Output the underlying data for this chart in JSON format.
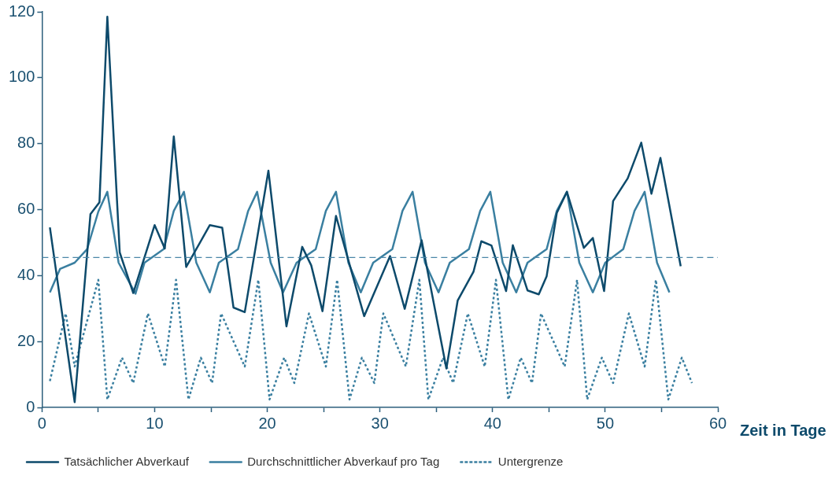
{
  "chart_data": {
    "type": "line",
    "xlabel": "Zeit in Tage",
    "xlim": [
      0,
      60
    ],
    "xticks": [
      0,
      {
        "value": 5,
        "label": null
      },
      10,
      {
        "value": 15,
        "label": null
      },
      20,
      {
        "value": 25,
        "label": null
      },
      30,
      {
        "value": 35,
        "label": null
      },
      40,
      {
        "value": 45,
        "label": null
      },
      50,
      {
        "value": 55,
        "label": null
      },
      60
    ],
    "ylim": [
      0,
      120
    ],
    "yticks": [
      0,
      20,
      40,
      60,
      80,
      100,
      120
    ],
    "grid": false,
    "legend": "bottom",
    "marker": "none",
    "ref_lines": [
      {
        "axis": "y",
        "value": 45.5,
        "color": "#4a86a8",
        "line_style": "dashed"
      }
    ],
    "series": [
      {
        "name": "Tatsächlicher Abverkauf",
        "color": "#0d4a6b",
        "line_style": "solid",
        "x": [
          0.7,
          2.9,
          4.3,
          5.1,
          5.8,
          6.9,
          8.1,
          10,
          10.9,
          11.7,
          12.8,
          14.9,
          16,
          17,
          18,
          20.1,
          21.7,
          23.1,
          23.9,
          24.9,
          26.1,
          27.3,
          28.6,
          30.9,
          32.2,
          33.7,
          35.9,
          36.9,
          38.3,
          39,
          39.9,
          41.2,
          41.8,
          43.1,
          44.1,
          44.8,
          45.7,
          46.6,
          48.1,
          48.9,
          49.9,
          50.7,
          52,
          53.2,
          54.1,
          54.9,
          56.7
        ],
        "values": [
          54.6,
          1.6,
          58.6,
          62.2,
          118.5,
          47,
          34.7,
          55.3,
          48.2,
          82.2,
          42.6,
          55.3,
          54.5,
          30.3,
          28.9,
          71.8,
          24.6,
          48.7,
          43.1,
          29.2,
          58.1,
          43.4,
          27.7,
          45.9,
          29.9,
          50.7,
          11.8,
          32.4,
          41.1,
          50.4,
          49.1,
          35.3,
          49.2,
          35.5,
          34.3,
          39.8,
          59,
          65.4,
          48.4,
          51.4,
          35.3,
          62.6,
          69.5,
          80.3,
          64.8,
          75.7,
          42.8
        ]
      },
      {
        "name": "Durchschnittlicher Abverkauf pro Tag",
        "color": "#3a7fa0",
        "line_style": "solid",
        "x": [
          0.7,
          1.6,
          2.9,
          4,
          5,
          5.8,
          6.8,
          8.3,
          9.1,
          10.8,
          11.7,
          12.6,
          13.7,
          14.9,
          15.7,
          17.4,
          18.3,
          19.1,
          20.3,
          21.4,
          22.6,
          24.3,
          25.2,
          26.1,
          27.2,
          28.3,
          29.4,
          31.1,
          32,
          32.9,
          34,
          35.2,
          36.2,
          37.9,
          38.9,
          39.8,
          40.9,
          42.1,
          43.1,
          44.8,
          45.7,
          46.6,
          47.7,
          48.9,
          50,
          51.6,
          52.6,
          53.5,
          54.6,
          55.7
        ],
        "values": [
          34.9,
          42,
          43.9,
          48,
          59.4,
          65.4,
          43.9,
          34.5,
          43.9,
          48,
          59.6,
          65.4,
          43.9,
          34.9,
          43.9,
          48,
          59.6,
          65.4,
          43.9,
          34.9,
          43.9,
          48,
          59.6,
          65.4,
          43.9,
          34.9,
          43.9,
          48,
          59.6,
          65.4,
          43.9,
          34.9,
          43.9,
          48,
          59.6,
          65.4,
          43.9,
          34.9,
          43.9,
          48,
          59.6,
          65.4,
          43.9,
          34.9,
          43.9,
          48,
          59.6,
          65.4,
          43.9,
          34.9
        ]
      },
      {
        "name": "Untergrenze",
        "color": "#3a7fa0",
        "line_style": "dotted",
        "x": [
          0.7,
          2.1,
          2.9,
          5,
          5.8,
          7.1,
          8.1,
          9.4,
          10.9,
          11.9,
          13,
          14.1,
          15.1,
          15.9,
          18,
          19.2,
          20.2,
          21.5,
          22.4,
          23.7,
          25.2,
          26.2,
          27.3,
          28.4,
          29.5,
          30.3,
          32.3,
          33.5,
          34.3,
          35.6,
          36.5,
          37.8,
          39.3,
          40.3,
          41.4,
          42.5,
          43.5,
          44.3,
          46.4,
          47.5,
          48.4,
          49.7,
          50.7,
          52.1,
          53.5,
          54.5,
          55.6,
          56.8,
          57.7
        ],
        "values": [
          8,
          28.5,
          12.4,
          38.7,
          2.4,
          15.1,
          7.4,
          28.5,
          12.4,
          38.7,
          2.4,
          15.1,
          7.4,
          28.5,
          12.4,
          38.7,
          2.4,
          15.1,
          7.4,
          28.5,
          12.4,
          38.7,
          2.4,
          15.1,
          7.4,
          28.5,
          12.4,
          38.7,
          2.4,
          15.1,
          7.4,
          28.5,
          12.4,
          38.7,
          2.4,
          15.1,
          7.4,
          28.5,
          12.4,
          38.7,
          2.4,
          15.1,
          7.4,
          28.5,
          12.4,
          38.7,
          2.4,
          15.1,
          7.4
        ]
      }
    ]
  }
}
